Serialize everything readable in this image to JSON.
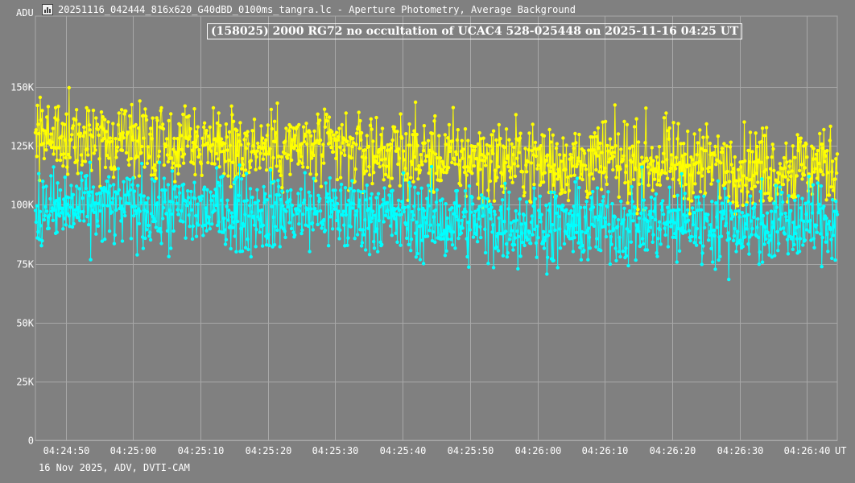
{
  "window": {
    "title": "20251116_042444_816x620_G40dBD_0100ms_tangra.lc - Aperture Photometry, Average Background",
    "icon": "chart-icon"
  },
  "footer": "16 Nov 2025, ADV, DVTI-CAM",
  "colors": {
    "background": "#808080",
    "grid": "#a8a8a8",
    "series_target": "#ffff00",
    "series_comparison": "#00ffff"
  },
  "chart_data": {
    "type": "line",
    "title": "(158025) 2000 RG72 no occultation of UCAC4 528-025448 on 2025-11-16  04:25 UT",
    "ylabel": "ADU",
    "xlabel": "UT",
    "ylim": [
      0,
      150000
    ],
    "y_ticks": [
      {
        "value": 0,
        "label": "0"
      },
      {
        "value": 25000,
        "label": "25K"
      },
      {
        "value": 50000,
        "label": "50K"
      },
      {
        "value": 75000,
        "label": "75K"
      },
      {
        "value": 100000,
        "label": "100K"
      },
      {
        "value": 125000,
        "label": "125K"
      },
      {
        "value": 150000,
        "label": "150K"
      }
    ],
    "x_start": "04:24:45.5",
    "x_end": "04:26:44.5",
    "x_ticks": [
      "04:24:50",
      "04:25:00",
      "04:25:10",
      "04:25:20",
      "04:25:30",
      "04:25:40",
      "04:25:50",
      "04:26:00",
      "04:26:10",
      "04:26:20",
      "04:26:30",
      "04:26:40"
    ],
    "grid": true,
    "series": [
      {
        "color": "#ffff00",
        "mean_by_10s": [
          128000,
          127000,
          126000,
          125000,
          124000,
          123000,
          120000,
          119000,
          118000,
          118000,
          117000,
          116000,
          117000
        ],
        "range": [
          96000,
          158000
        ]
      },
      {
        "color": "#00ffff",
        "mean_by_10s": [
          97000,
          99000,
          98000,
          97000,
          97000,
          96000,
          93000,
          92000,
          91000,
          92000,
          92000,
          91000,
          93000
        ],
        "range": [
          61000,
          118000
        ]
      }
    ],
    "samples_per_second": 10
  }
}
